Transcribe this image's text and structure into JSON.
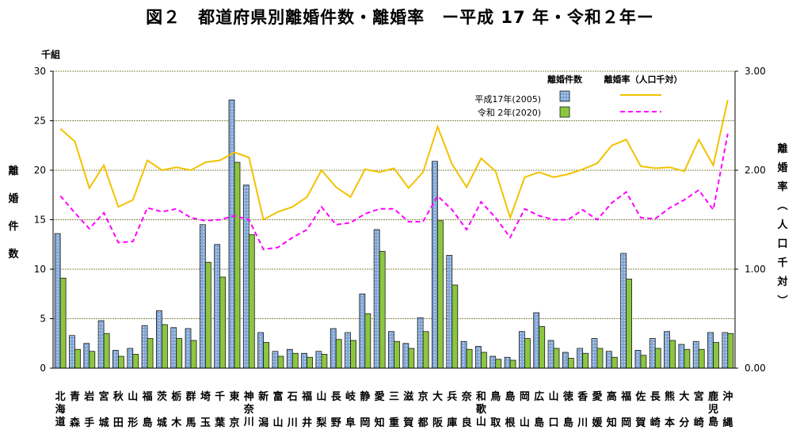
{
  "chart_data": {
    "type": "bar",
    "title": "図２　都道府県別離婚件数・離婚率　ー平成 17 年・令和２年ー",
    "y_unit": "千組",
    "ylabel": [
      "離",
      "婚",
      "件",
      "数"
    ],
    "ylabel_right": [
      "離",
      "婚",
      "率",
      "︵",
      "人",
      "口",
      "千",
      "対",
      "︶"
    ],
    "ylim": [
      0,
      30
    ],
    "y_ticks": [
      "0",
      "5",
      "10",
      "15",
      "20",
      "25",
      "30"
    ],
    "ylim_right": [
      0,
      3
    ],
    "y_ticks_right": [
      "0.00",
      "1.00",
      "2.00",
      "3.00"
    ],
    "grid": true,
    "legend": {
      "count_header": "離婚件数",
      "rate_header": "離婚率（人口千対）",
      "rows": [
        "平成17年(2005)",
        "令和 2年(2020)"
      ],
      "placement": "top-right"
    },
    "categories": [
      [
        "北",
        "海",
        "道"
      ],
      [
        "青",
        "森"
      ],
      [
        "岩",
        "手"
      ],
      [
        "宮",
        "城"
      ],
      [
        "秋",
        "田"
      ],
      [
        "山",
        "形"
      ],
      [
        "福",
        "島"
      ],
      [
        "茨",
        "城"
      ],
      [
        "栃",
        "木"
      ],
      [
        "群",
        "馬"
      ],
      [
        "埼",
        "玉"
      ],
      [
        "千",
        "葉"
      ],
      [
        "東",
        "京"
      ],
      [
        "神",
        "奈",
        "川"
      ],
      [
        "新",
        "潟"
      ],
      [
        "富",
        "山"
      ],
      [
        "石",
        "川"
      ],
      [
        "福",
        "井"
      ],
      [
        "山",
        "梨"
      ],
      [
        "長",
        "野"
      ],
      [
        "岐",
        "阜"
      ],
      [
        "静",
        "岡"
      ],
      [
        "愛",
        "知"
      ],
      [
        "三",
        "重"
      ],
      [
        "滋",
        "賀"
      ],
      [
        "京",
        "都"
      ],
      [
        "大",
        "阪"
      ],
      [
        "兵",
        "庫"
      ],
      [
        "奈",
        "良"
      ],
      [
        "和",
        "歌",
        "山"
      ],
      [
        "鳥",
        "取"
      ],
      [
        "島",
        "根"
      ],
      [
        "岡",
        "山"
      ],
      [
        "広",
        "島"
      ],
      [
        "山",
        "口"
      ],
      [
        "徳",
        "島"
      ],
      [
        "香",
        "川"
      ],
      [
        "愛",
        "媛"
      ],
      [
        "高",
        "知"
      ],
      [
        "福",
        "岡"
      ],
      [
        "佐",
        "賀"
      ],
      [
        "長",
        "崎"
      ],
      [
        "熊",
        "本"
      ],
      [
        "大",
        "分"
      ],
      [
        "宮",
        "崎"
      ],
      [
        "鹿",
        "児",
        "島"
      ],
      [
        "沖",
        "縄"
      ]
    ],
    "series": [
      {
        "name": "平成17年(2005)",
        "kind": "bar",
        "axis": "left",
        "color": "#7fa6d6",
        "values": [
          13.6,
          3.3,
          2.5,
          4.8,
          1.8,
          2.0,
          4.3,
          5.8,
          4.1,
          4.0,
          14.5,
          12.5,
          27.1,
          18.5,
          3.6,
          1.7,
          1.9,
          1.5,
          1.7,
          4.0,
          3.6,
          7.5,
          14.0,
          3.7,
          2.5,
          5.1,
          20.9,
          11.4,
          2.7,
          2.2,
          1.2,
          1.1,
          3.7,
          5.6,
          2.8,
          1.6,
          2.0,
          3.0,
          1.7,
          11.6,
          1.8,
          3.0,
          3.7,
          2.4,
          2.7,
          3.6,
          3.6
        ]
      },
      {
        "name": "令和 2年(2020)",
        "kind": "bar",
        "axis": "left",
        "color": "#8cc63f",
        "values": [
          9.1,
          1.9,
          1.7,
          3.5,
          1.2,
          1.4,
          3.0,
          4.4,
          3.0,
          2.8,
          10.7,
          9.2,
          20.8,
          13.5,
          2.6,
          1.2,
          1.5,
          1.1,
          1.4,
          2.9,
          2.8,
          5.5,
          11.8,
          2.7,
          2.0,
          3.7,
          14.9,
          8.4,
          1.9,
          1.6,
          0.9,
          0.8,
          3.0,
          4.2,
          2.0,
          1.0,
          1.5,
          2.0,
          1.1,
          9.0,
          1.3,
          2.0,
          2.8,
          1.9,
          1.9,
          2.6,
          3.5
        ]
      },
      {
        "name": "平成17年(2005)",
        "kind": "line",
        "axis": "right",
        "color": "#f2c200",
        "values": [
          2.42,
          2.29,
          1.82,
          2.05,
          1.63,
          1.7,
          2.1,
          2.0,
          2.03,
          2.0,
          2.08,
          2.1,
          2.18,
          2.13,
          1.5,
          1.58,
          1.63,
          1.73,
          2.0,
          1.83,
          1.73,
          2.01,
          1.98,
          2.02,
          1.82,
          1.98,
          2.44,
          2.06,
          1.83,
          2.12,
          1.99,
          1.52,
          1.93,
          1.98,
          1.93,
          1.96,
          2.01,
          2.07,
          2.25,
          2.31,
          2.04,
          2.02,
          2.03,
          1.99,
          2.31,
          2.05,
          2.71
        ]
      },
      {
        "name": "令和 2年(2020)",
        "kind": "line",
        "axis": "right",
        "color": "#ff00ff",
        "values": [
          1.74,
          1.57,
          1.41,
          1.57,
          1.27,
          1.28,
          1.62,
          1.58,
          1.61,
          1.52,
          1.49,
          1.5,
          1.54,
          1.5,
          1.2,
          1.22,
          1.32,
          1.4,
          1.63,
          1.45,
          1.47,
          1.56,
          1.61,
          1.61,
          1.48,
          1.48,
          1.74,
          1.6,
          1.4,
          1.68,
          1.52,
          1.32,
          1.61,
          1.54,
          1.5,
          1.5,
          1.6,
          1.5,
          1.67,
          1.78,
          1.52,
          1.51,
          1.62,
          1.7,
          1.8,
          1.6,
          2.37
        ]
      }
    ]
  }
}
